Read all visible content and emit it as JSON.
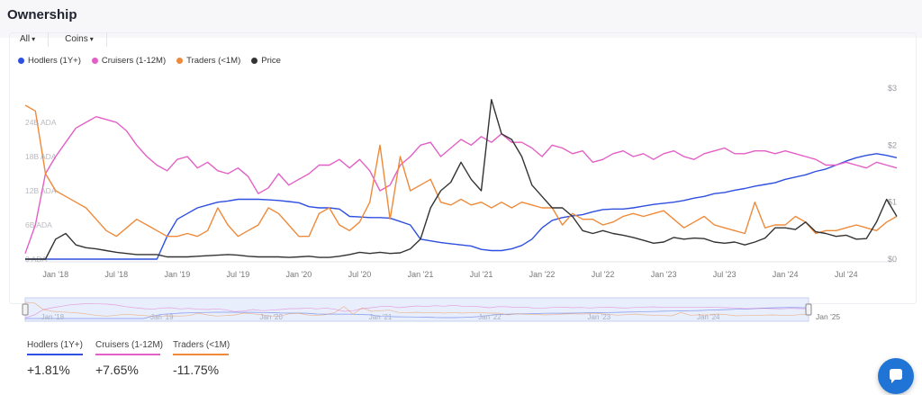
{
  "page": {
    "title": "Ownership"
  },
  "filters": [
    {
      "label": "All",
      "icon": "chevron-down-icon"
    },
    {
      "label": "Coins",
      "icon": "chevron-down-icon"
    }
  ],
  "colors": {
    "hodlers": "#2e4fe0",
    "cruisers": "#e35fc5",
    "traders": "#ee8a3a",
    "price": "#333333",
    "navigator_fill": "#e8eefc"
  },
  "chart_data": {
    "type": "line",
    "legend_position": "top-left",
    "grid": false,
    "x_ticks": [
      "Jan '18",
      "Jul '18",
      "Jan '19",
      "Jul '19",
      "Jan '20",
      "Jul '20",
      "Jan '21",
      "Jul '21",
      "Jan '22",
      "Jul '22",
      "Jan '23",
      "Jul '23",
      "Jan '24",
      "Jul '24"
    ],
    "x_range": [
      "2017-10",
      "2024-12"
    ],
    "y_left_ticks": [
      "0 ADA",
      "6B ADA",
      "12B ADA",
      "18B ADA",
      "24B ADA"
    ],
    "y_left_range": [
      0,
      30
    ],
    "y_left_unit": "B ADA",
    "y_right_ticks": [
      "$0",
      "$1",
      "$2",
      "$3"
    ],
    "y_right_range": [
      0,
      3
    ],
    "x": [
      "2017-10",
      "2017-11",
      "2017-12",
      "2018-01",
      "2018-02",
      "2018-03",
      "2018-04",
      "2018-05",
      "2018-06",
      "2018-07",
      "2018-08",
      "2018-09",
      "2018-10",
      "2018-11",
      "2018-12",
      "2019-01",
      "2019-02",
      "2019-03",
      "2019-04",
      "2019-05",
      "2019-06",
      "2019-07",
      "2019-08",
      "2019-09",
      "2019-10",
      "2019-11",
      "2019-12",
      "2020-01",
      "2020-02",
      "2020-03",
      "2020-04",
      "2020-05",
      "2020-06",
      "2020-07",
      "2020-08",
      "2020-09",
      "2020-10",
      "2020-11",
      "2020-12",
      "2021-01",
      "2021-02",
      "2021-03",
      "2021-04",
      "2021-05",
      "2021-06",
      "2021-07",
      "2021-08",
      "2021-09",
      "2021-10",
      "2021-11",
      "2021-12",
      "2022-01",
      "2022-02",
      "2022-03",
      "2022-04",
      "2022-05",
      "2022-06",
      "2022-07",
      "2022-08",
      "2022-09",
      "2022-10",
      "2022-11",
      "2022-12",
      "2023-01",
      "2023-02",
      "2023-03",
      "2023-04",
      "2023-05",
      "2023-06",
      "2023-07",
      "2023-08",
      "2023-09",
      "2023-10",
      "2023-11",
      "2023-12",
      "2024-01",
      "2024-02",
      "2024-03",
      "2024-04",
      "2024-05",
      "2024-06",
      "2024-07",
      "2024-08",
      "2024-09",
      "2024-10",
      "2024-11",
      "2024-12"
    ],
    "series": [
      {
        "name": "Hodlers (1Y+)",
        "axis": "left",
        "color": "#2e4fe0",
        "values": [
          0,
          0,
          0,
          0,
          0,
          0,
          0,
          0,
          0,
          0,
          0,
          0,
          0,
          0,
          4,
          7,
          8,
          9,
          9.5,
          10,
          10.2,
          10.5,
          10.5,
          10.5,
          10.4,
          10.3,
          10.1,
          9.9,
          9.2,
          9,
          9,
          8.8,
          7.5,
          7.4,
          7.3,
          7.3,
          7.2,
          6.6,
          6,
          3.5,
          3.2,
          2.9,
          2.7,
          2.5,
          2.3,
          1.7,
          1.5,
          1.5,
          1.8,
          2.4,
          3.5,
          5.5,
          6.8,
          7.3,
          7.6,
          7.8,
          8.3,
          8.7,
          8.8,
          8.8,
          9,
          9.3,
          9.6,
          9.8,
          10,
          10.3,
          10.7,
          11,
          11.5,
          11.7,
          12.1,
          12.4,
          12.8,
          13.1,
          13.4,
          14,
          14.4,
          14.8,
          15.4,
          15.8,
          16.5,
          17.2,
          17.8,
          18.2,
          18.5,
          18.2,
          17.8
        ]
      },
      {
        "name": "Cruisers (1-12M)",
        "axis": "left",
        "color": "#e35fc5",
        "values": [
          1,
          6,
          15,
          18,
          20.5,
          23,
          24,
          25,
          24.5,
          24,
          22.5,
          20,
          18,
          16.5,
          15.5,
          17.5,
          18,
          16,
          17,
          15.5,
          15,
          16,
          14.5,
          11.5,
          12.5,
          15,
          13,
          14,
          15,
          16.5,
          16.5,
          17.5,
          16,
          17.5,
          15.5,
          12,
          13,
          16.5,
          18,
          20,
          20.5,
          18,
          19.5,
          21,
          20,
          21.5,
          20.5,
          22,
          20.5,
          20.5,
          19.5,
          18,
          20,
          19.5,
          18.5,
          19,
          17,
          17.5,
          18.5,
          19,
          18,
          18.5,
          17.5,
          18.5,
          19,
          18,
          17.5,
          18.5,
          19,
          19.5,
          18.5,
          18.5,
          19,
          19,
          18.5,
          19,
          18.5,
          18,
          17.5,
          16.5,
          16.5,
          17,
          16.5,
          16,
          17,
          16.5,
          16
        ]
      },
      {
        "name": "Traders (<1M)",
        "axis": "left",
        "color": "#ee8a3a",
        "values": [
          27,
          26,
          15,
          12,
          11,
          10,
          9,
          7,
          5,
          4,
          5.5,
          7,
          6,
          5,
          4,
          4,
          4.5,
          4,
          5,
          9,
          6,
          4,
          5,
          6,
          9,
          8,
          6,
          4,
          4,
          8,
          9,
          6,
          5,
          6.5,
          10,
          20,
          7,
          18,
          12,
          13,
          14,
          10,
          9.5,
          10.5,
          9.5,
          10,
          9,
          10,
          9,
          10,
          9.5,
          9,
          9,
          6,
          8,
          7,
          7,
          6,
          6.5,
          7.5,
          8,
          7.5,
          8,
          8.5,
          7,
          5.5,
          6.5,
          7.5,
          6,
          5.5,
          5,
          4.5,
          10,
          5.5,
          6,
          6,
          7.5,
          6.5,
          4.5,
          5,
          5,
          5.5,
          6,
          5.5,
          5,
          6.5,
          7.5
        ]
      },
      {
        "name": "Price",
        "axis": "right",
        "color": "#333333",
        "values": [
          0,
          0,
          0,
          0.35,
          0.45,
          0.25,
          0.2,
          0.18,
          0.15,
          0.12,
          0.1,
          0.08,
          0.08,
          0.08,
          0.04,
          0.04,
          0.04,
          0.05,
          0.06,
          0.07,
          0.08,
          0.07,
          0.05,
          0.04,
          0.04,
          0.04,
          0.03,
          0.04,
          0.05,
          0.03,
          0.03,
          0.05,
          0.08,
          0.12,
          0.1,
          0.12,
          0.1,
          0.11,
          0.18,
          0.35,
          0.9,
          1.2,
          1.35,
          1.7,
          1.4,
          1.2,
          2.8,
          2.2,
          2.1,
          1.8,
          1.3,
          1.1,
          0.9,
          0.9,
          0.75,
          0.5,
          0.45,
          0.5,
          0.45,
          0.42,
          0.38,
          0.33,
          0.28,
          0.3,
          0.38,
          0.35,
          0.37,
          0.36,
          0.3,
          0.28,
          0.3,
          0.25,
          0.3,
          0.37,
          0.55,
          0.55,
          0.52,
          0.65,
          0.48,
          0.45,
          0.4,
          0.42,
          0.35,
          0.36,
          0.65,
          1.05,
          0.75
        ]
      }
    ]
  },
  "summary": [
    {
      "label": "Hodlers (1Y+)",
      "value": "+1.81%",
      "color": "#2e4fe0"
    },
    {
      "label": "Cruisers (1-12M)",
      "value": "+7.65%",
      "color": "#e35fc5"
    },
    {
      "label": "Traders (<1M)",
      "value": "-11.75%",
      "color": "#ee8a3a"
    }
  ],
  "navigator": {
    "end_label": "Jan '25"
  },
  "chat_icon": "chat-bubble-icon"
}
